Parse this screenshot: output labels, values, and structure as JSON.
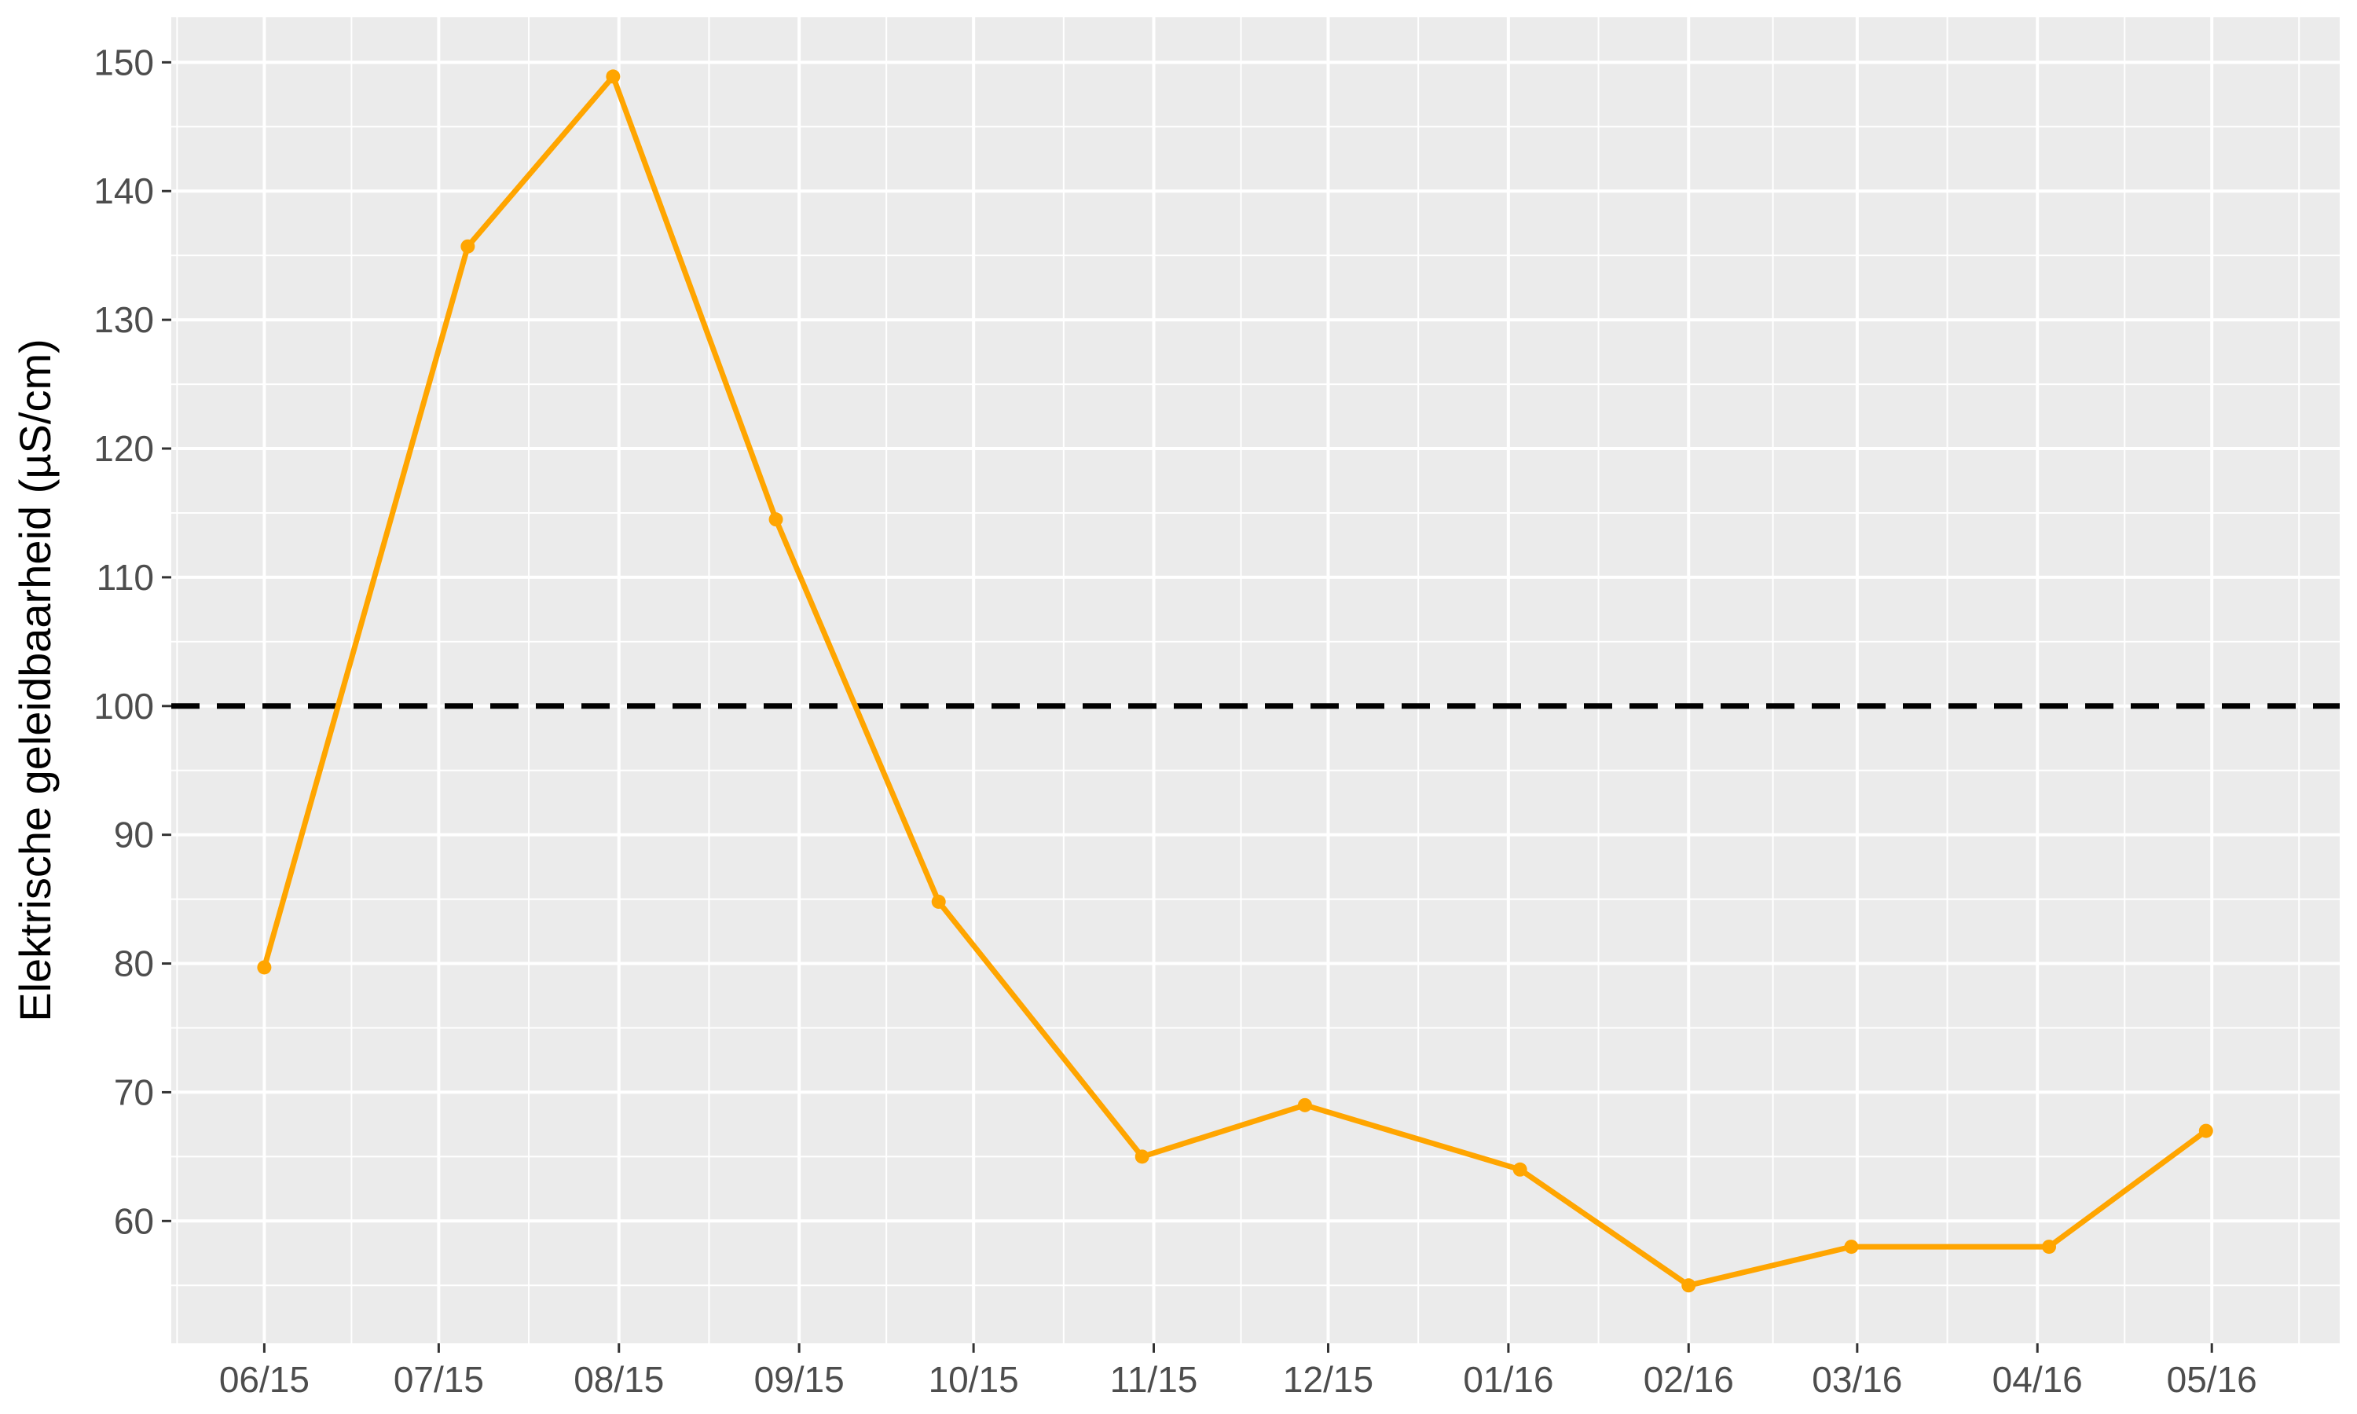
{
  "chart_data": {
    "type": "line",
    "title": "",
    "xlabel": "",
    "ylabel": "Elektrische geleidbaarheid (µS/cm)",
    "x_ticks": [
      {
        "label": "06/15",
        "date": "2015-06-01"
      },
      {
        "label": "07/15",
        "date": "2015-07-01"
      },
      {
        "label": "08/15",
        "date": "2015-08-01"
      },
      {
        "label": "09/15",
        "date": "2015-09-01"
      },
      {
        "label": "10/15",
        "date": "2015-10-01"
      },
      {
        "label": "11/15",
        "date": "2015-11-01"
      },
      {
        "label": "12/15",
        "date": "2015-12-01"
      },
      {
        "label": "01/16",
        "date": "2016-01-01"
      },
      {
        "label": "02/16",
        "date": "2016-02-01"
      },
      {
        "label": "03/16",
        "date": "2016-03-01"
      },
      {
        "label": "04/16",
        "date": "2016-04-01"
      },
      {
        "label": "05/16",
        "date": "2016-05-01"
      }
    ],
    "y_ticks": [
      60,
      70,
      80,
      90,
      100,
      110,
      120,
      130,
      140,
      150
    ],
    "xlim": [
      "2015-05-16",
      "2016-05-23"
    ],
    "ylim": [
      50.5,
      153.5
    ],
    "grid": true,
    "series": [
      {
        "color": "#FFA500",
        "points": [
          {
            "x": "2015-06-01",
            "y": 79.7
          },
          {
            "x": "2015-07-06",
            "y": 135.7
          },
          {
            "x": "2015-07-31",
            "y": 148.9
          },
          {
            "x": "2015-08-28",
            "y": 114.5
          },
          {
            "x": "2015-09-25",
            "y": 84.8
          },
          {
            "x": "2015-10-30",
            "y": 65
          },
          {
            "x": "2015-11-27",
            "y": 69
          },
          {
            "x": "2016-01-03",
            "y": 64
          },
          {
            "x": "2016-02-01",
            "y": 55
          },
          {
            "x": "2016-02-29",
            "y": 58
          },
          {
            "x": "2016-04-03",
            "y": 58
          },
          {
            "x": "2016-04-30",
            "y": 67
          }
        ]
      }
    ],
    "reference_line": {
      "y": 100,
      "color": "#000000",
      "style": "dashed"
    }
  }
}
